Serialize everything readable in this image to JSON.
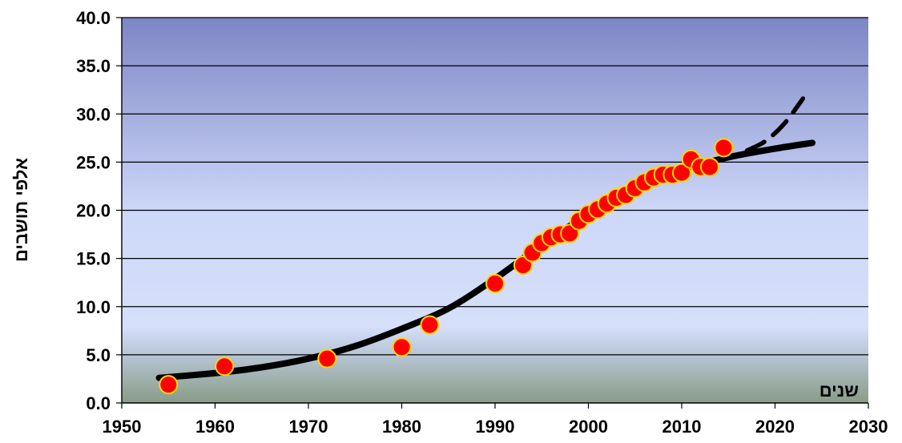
{
  "chart_data": {
    "type": "scatter",
    "title": "",
    "xlabel": "שנים",
    "ylabel": "אלפי תושבים",
    "xlim": [
      1950,
      2030
    ],
    "ylim": [
      0,
      40
    ],
    "grid": true,
    "x_ticks": [
      "1950",
      "1960",
      "1970",
      "1980",
      "1990",
      "2000",
      "2010",
      "2020",
      "2030"
    ],
    "y_ticks": [
      "0.0",
      "5.0",
      "10.0",
      "15.0",
      "20.0",
      "25.0",
      "30.0",
      "35.0",
      "40.0"
    ],
    "colors": {
      "marker_fill": "#ff0000",
      "marker_edge": "#ffd700",
      "curve": "#000000",
      "bg_top": "#8087c6",
      "bg_mid": "#d2dcfa",
      "bg_bottom": "#8a9e88"
    },
    "series": [
      {
        "type": "scatter",
        "points": [
          [
            1955,
            1.9
          ],
          [
            1961,
            3.8
          ],
          [
            1972,
            4.6
          ],
          [
            1980,
            5.8
          ],
          [
            1983,
            8.1
          ],
          [
            1990,
            12.4
          ],
          [
            1993,
            14.3
          ],
          [
            1994,
            15.6
          ],
          [
            1995,
            16.6
          ],
          [
            1996,
            17.2
          ],
          [
            1997,
            17.5
          ],
          [
            1998,
            17.6
          ],
          [
            1999,
            18.9
          ],
          [
            2000,
            19.6
          ],
          [
            2001,
            20.1
          ],
          [
            2002,
            20.7
          ],
          [
            2003,
            21.3
          ],
          [
            2004,
            21.6
          ],
          [
            2005,
            22.3
          ],
          [
            2006,
            22.9
          ],
          [
            2007,
            23.4
          ],
          [
            2008,
            23.7
          ],
          [
            2009,
            23.7
          ],
          [
            2010,
            23.9
          ],
          [
            2011,
            25.3
          ],
          [
            2012,
            24.5
          ],
          [
            2013,
            24.5
          ],
          [
            2014.5,
            26.5
          ]
        ]
      },
      {
        "type": "line",
        "style": "solid",
        "points": [
          [
            1954,
            2.6
          ],
          [
            1960,
            3.1
          ],
          [
            1965,
            3.7
          ],
          [
            1970,
            4.6
          ],
          [
            1975,
            5.9
          ],
          [
            1980,
            7.7
          ],
          [
            1985,
            9.8
          ],
          [
            1990,
            12.9
          ],
          [
            1995,
            16.4
          ],
          [
            2000,
            19.6
          ],
          [
            2005,
            22.3
          ],
          [
            2010,
            24.2
          ],
          [
            2015,
            25.5
          ],
          [
            2020,
            26.4
          ],
          [
            2024,
            27.0
          ]
        ]
      },
      {
        "type": "line",
        "style": "dashed",
        "points": [
          [
            2017,
            26.2
          ],
          [
            2019,
            27.2
          ],
          [
            2021,
            29.0
          ],
          [
            2023,
            31.6
          ]
        ]
      }
    ]
  }
}
